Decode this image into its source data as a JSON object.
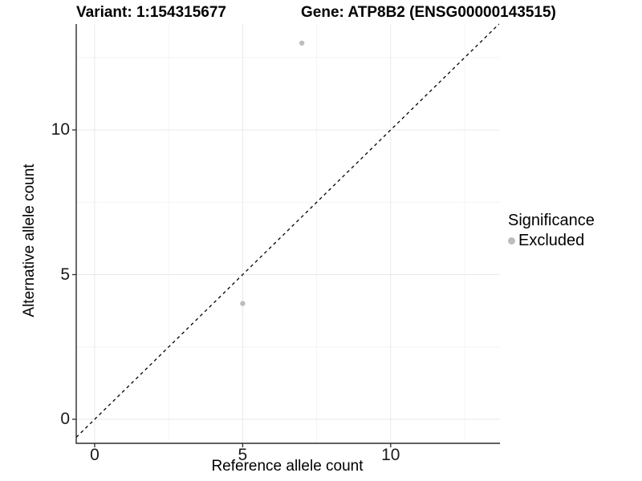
{
  "chart_data": {
    "type": "scatter",
    "title_left": "Variant: 1:154315677",
    "title_right": "Gene: ATP8B2 (ENSG00000143515)",
    "xlabel": "Reference allele count",
    "ylabel": "Alternative allele count",
    "xlim": [
      -0.623,
      13.692
    ],
    "ylim": [
      -0.831,
      13.659
    ],
    "x_ticks": [
      0,
      5,
      10
    ],
    "y_ticks": [
      0,
      5,
      10
    ],
    "x_minor_ticks": [
      2.5,
      7.5,
      12.5
    ],
    "y_minor_ticks": [
      2.5,
      7.5,
      12.5
    ],
    "grid": true,
    "points": [
      {
        "x": 7,
        "y": 13,
        "series": "Excluded"
      },
      {
        "x": 5,
        "y": 4,
        "series": "Excluded"
      }
    ],
    "point_color": "#bdbdbd",
    "point_radius": 3.2,
    "reference_line": {
      "kind": "identity-diagonal",
      "style": "dashed",
      "color": "#000000"
    },
    "legend": {
      "title": "Significance",
      "position": "right",
      "items": [
        {
          "label": "Excluded",
          "color": "#bdbdbd"
        }
      ]
    },
    "colors": {
      "grid_major": "#e9e9e9",
      "grid_minor": "#f4f4f4",
      "axis": "#2b2b2b",
      "tick_text": "#1a1a1a",
      "background": "#ffffff"
    }
  }
}
